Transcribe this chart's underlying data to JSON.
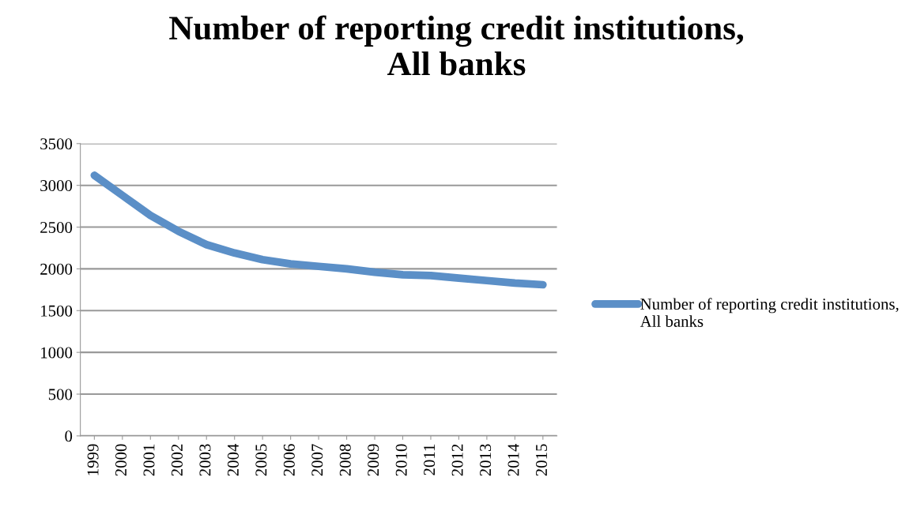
{
  "chart_data": {
    "type": "line",
    "title": "Number of reporting credit institutions,\nAll banks",
    "categories": [
      "1999",
      "2000",
      "2001",
      "2002",
      "2003",
      "2004",
      "2005",
      "2006",
      "2007",
      "2008",
      "2009",
      "2010",
      "2011",
      "2012",
      "2013",
      "2014",
      "2015"
    ],
    "series": [
      {
        "name": "Number of reporting credit institutions, All banks",
        "color": "#5b8fc7",
        "values": [
          3120,
          2880,
          2640,
          2450,
          2290,
          2190,
          2110,
          2060,
          2030,
          2000,
          1960,
          1930,
          1920,
          1890,
          1860,
          1830,
          1810
        ]
      }
    ],
    "ylim": [
      0,
      3500
    ],
    "yticks": [
      0,
      500,
      1000,
      1500,
      2000,
      2500,
      3000,
      3500
    ],
    "grid": "y",
    "legend": "right",
    "marker": "none",
    "line_style": "solid"
  }
}
